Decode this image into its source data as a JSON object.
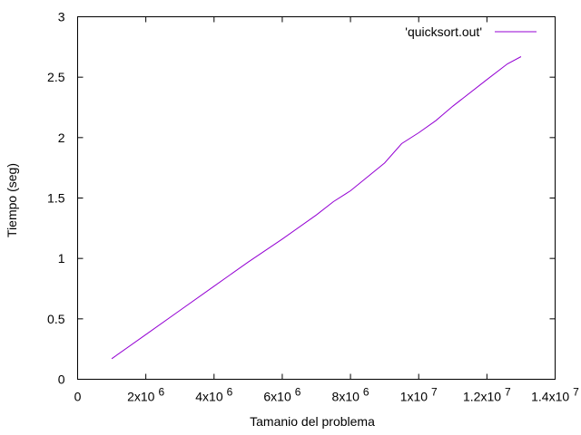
{
  "chart_data": {
    "type": "line",
    "xlabel": "Tamanio del problema",
    "ylabel": "Tiempo (seg)",
    "xlim": [
      0,
      14000000
    ],
    "ylim": [
      0,
      3
    ],
    "x_ticks": [
      {
        "value": 0,
        "base": "0",
        "exp": ""
      },
      {
        "value": 2000000,
        "base": "2x10",
        "exp": "6"
      },
      {
        "value": 4000000,
        "base": "4x10",
        "exp": "6"
      },
      {
        "value": 6000000,
        "base": "6x10",
        "exp": "6"
      },
      {
        "value": 8000000,
        "base": "8x10",
        "exp": "6"
      },
      {
        "value": 10000000,
        "base": "1x10",
        "exp": "7"
      },
      {
        "value": 12000000,
        "base": "1.2x10",
        "exp": "7"
      },
      {
        "value": 14000000,
        "base": "1.4x10",
        "exp": "7"
      }
    ],
    "y_ticks": [
      {
        "value": 0,
        "label": "0"
      },
      {
        "value": 0.5,
        "label": "0.5"
      },
      {
        "value": 1,
        "label": "1"
      },
      {
        "value": 1.5,
        "label": "1.5"
      },
      {
        "value": 2,
        "label": "2"
      },
      {
        "value": 2.5,
        "label": "2.5"
      },
      {
        "value": 3,
        "label": "3"
      }
    ],
    "grid": false,
    "legend_position": "top-right",
    "series": [
      {
        "name": "'quicksort.out'",
        "color": "#9400d3",
        "x": [
          1000000,
          2000000,
          3000000,
          4000000,
          5000000,
          6000000,
          7000000,
          7500000,
          8000000,
          9000000,
          9500000,
          10000000,
          10500000,
          11000000,
          12000000,
          12600000,
          13000000
        ],
        "y": [
          0.17,
          0.37,
          0.57,
          0.77,
          0.97,
          1.16,
          1.36,
          1.47,
          1.56,
          1.79,
          1.95,
          2.04,
          2.14,
          2.26,
          2.48,
          2.61,
          2.67
        ]
      }
    ]
  }
}
